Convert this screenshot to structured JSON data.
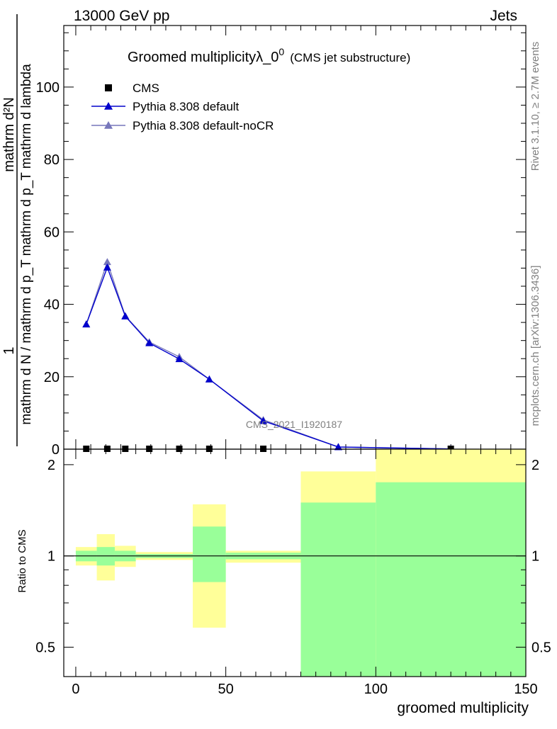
{
  "header": {
    "left": "13000 GeV pp",
    "right": "Jets"
  },
  "title": {
    "main": "Groomed multiplicityλ_0",
    "sup": "0",
    "sub": "(CMS jet substructure)"
  },
  "side_labels": {
    "rivet": "Rivet 3.1.10, ≥ 2.7M events",
    "mcplots": "mcplots.cern.ch [arXiv:1306.3436]"
  },
  "watermark": "CMS_2021_I1920187",
  "colors": {
    "cms": "#000000",
    "pythia_default": "#0000cc",
    "pythia_nocr": "#7777bb",
    "band_inner": "#99ff99",
    "band_outer": "#ffff99"
  },
  "chart_data": [
    {
      "type": "line",
      "panel": "main",
      "ylabel": {
        "numerator": "1",
        "denominator": "mathrm d N / mathrm d p_T mathrm d p_T mathrm d lambda",
        "right_num": "mathrm d²N",
        "full": "1 / (mathrm d N / mathrm d p_T) · mathrm d²N / (mathrm d p_T mathrm d lambda)"
      },
      "xlim": [
        -4,
        150
      ],
      "ylim": [
        0,
        117
      ],
      "yticks": [
        0,
        20,
        40,
        60,
        80,
        100
      ],
      "legend": [
        "CMS",
        "Pythia 8.308 default",
        "Pythia 8.308 default-noCR"
      ],
      "legend_position": "top-left",
      "series": [
        {
          "name": "CMS",
          "marker": "square",
          "x": [
            3.5,
            10.5,
            16.5,
            24.5,
            34.5,
            44.5,
            62.5,
            125
          ],
          "y": [
            0.1,
            0.1,
            0.1,
            0.1,
            0.1,
            0.1,
            0.1,
            0.1
          ]
        },
        {
          "name": "Pythia 8.308 default",
          "marker": "triangle",
          "x": [
            3.5,
            10.5,
            16.5,
            24.5,
            34.5,
            44.5,
            62.5,
            87.5,
            125
          ],
          "y": [
            34.5,
            50.2,
            36.7,
            29.3,
            24.9,
            19.3,
            7.8,
            0.6,
            0.05
          ]
        },
        {
          "name": "Pythia 8.308 default-noCR",
          "marker": "triangle",
          "x": [
            3.5,
            10.5,
            16.5,
            24.5,
            34.5,
            44.5,
            62.5,
            87.5,
            125
          ],
          "y": [
            34.5,
            51.7,
            36.8,
            29.6,
            25.5,
            19.3,
            8.1,
            0.6,
            0.05
          ]
        }
      ]
    },
    {
      "type": "area",
      "panel": "ratio",
      "ylabel": "Ratio to CMS",
      "xlabel": "groomed multiplicity",
      "xlim": [
        -4,
        150
      ],
      "ylim": [
        0.4,
        2.25
      ],
      "log_y": true,
      "yticks": [
        0.5,
        1,
        2
      ],
      "xticks": [
        0,
        50,
        100,
        150
      ],
      "bands": [
        {
          "x0": 0,
          "x1": 7,
          "inner": [
            0.96,
            1.04
          ],
          "outer": [
            0.93,
            1.07
          ]
        },
        {
          "x0": 7,
          "x1": 13,
          "inner": [
            0.93,
            1.07
          ],
          "outer": [
            0.83,
            1.18
          ]
        },
        {
          "x0": 13,
          "x1": 20,
          "inner": [
            0.96,
            1.04
          ],
          "outer": [
            0.92,
            1.08
          ]
        },
        {
          "x0": 20,
          "x1": 39,
          "inner": [
            0.985,
            1.015
          ],
          "outer": [
            0.97,
            1.03
          ]
        },
        {
          "x0": 39,
          "x1": 50,
          "inner": [
            0.82,
            1.25
          ],
          "outer": [
            0.58,
            1.48
          ]
        },
        {
          "x0": 50,
          "x1": 75,
          "inner": [
            0.975,
            1.025
          ],
          "outer": [
            0.95,
            1.04
          ]
        },
        {
          "x0": 75,
          "x1": 100,
          "inner": [
            0.4,
            1.5
          ],
          "outer": [
            0.4,
            1.9
          ]
        },
        {
          "x0": 100,
          "x1": 150,
          "inner": [
            0.4,
            1.75
          ],
          "outer": [
            0.4,
            2.25
          ]
        }
      ],
      "reference": 1
    }
  ]
}
